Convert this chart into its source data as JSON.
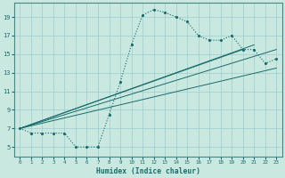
{
  "xlabel": "Humidex (Indice chaleur)",
  "xlim": [
    -0.5,
    23.5
  ],
  "ylim": [
    4.0,
    20.5
  ],
  "xticks": [
    0,
    1,
    2,
    3,
    4,
    5,
    6,
    7,
    8,
    9,
    10,
    11,
    12,
    13,
    14,
    15,
    16,
    17,
    18,
    19,
    20,
    21,
    22,
    23
  ],
  "yticks": [
    5,
    7,
    9,
    11,
    13,
    15,
    17,
    19
  ],
  "bg_color": "#c8e8e0",
  "line_color": "#1a6b6b",
  "grid_color": "#9ecece",
  "curve1_x": [
    0,
    1,
    2,
    3,
    4,
    5,
    6,
    7,
    8,
    9,
    10,
    11,
    12,
    13,
    14,
    15,
    16,
    17,
    18,
    19,
    20,
    21,
    22,
    23
  ],
  "curve1_y": [
    7,
    6.5,
    6.5,
    6.5,
    6.5,
    5,
    5,
    5,
    8.5,
    12,
    16,
    19.2,
    19.8,
    19.5,
    19.0,
    18.5,
    17.0,
    16.5,
    16.5,
    17.0,
    15.5,
    15.5,
    14.0,
    14.5
  ],
  "straight_lines": [
    {
      "x": [
        0,
        23
      ],
      "y": [
        7,
        13.5
      ]
    },
    {
      "x": [
        0,
        23
      ],
      "y": [
        7,
        15.5
      ]
    },
    {
      "x": [
        0,
        21
      ],
      "y": [
        7,
        16.0
      ]
    },
    {
      "x": [
        0,
        20
      ],
      "y": [
        7,
        15.5
      ]
    }
  ]
}
